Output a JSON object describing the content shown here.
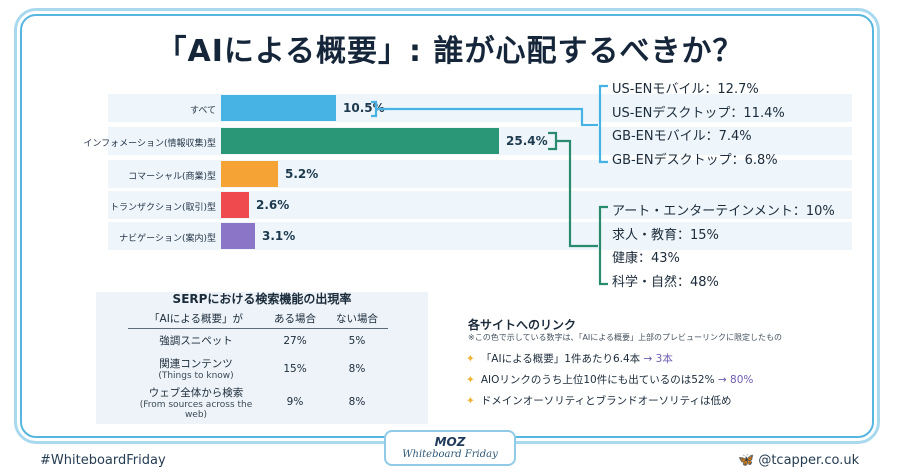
{
  "title": "「AIによる概要」: 誰が心配するべきか？",
  "colors": {
    "frame": "#57b6e0",
    "accent_blue": "#46b3e4",
    "accent_teal": "#2a9777",
    "bracket_teal": "#2a8a6e"
  },
  "chart_data": {
    "type": "bar",
    "orientation": "horizontal",
    "categories": [
      "すべて",
      "インフォメーション(情報収集)型",
      "コマーシャル(商業)型",
      "トランザクション(取引)型",
      "ナビゲーション(案内)型"
    ],
    "values": [
      10.5,
      25.4,
      5.2,
      2.6,
      3.1
    ],
    "value_labels": [
      "10.5%",
      "25.4%",
      "5.2%",
      "2.6%",
      "3.1%"
    ],
    "colors": [
      "#46b3e4",
      "#2a9777",
      "#f6a336",
      "#ef4b4f",
      "#8b75c6"
    ],
    "xlim": [
      0,
      25.4
    ]
  },
  "platform_breakdown": [
    "US-ENモバイル：12.7%",
    "US-ENデスクトップ：11.4%",
    "GB-ENモバイル：7.4%",
    "GB-ENデスクトップ：6.8%"
  ],
  "topic_breakdown": [
    "アート・エンターテインメント：10%",
    "求人・教育：15%",
    "健康：43%",
    "科学・自然：48%"
  ],
  "serp_features": {
    "title": "SERPにおける検索機能の出現率",
    "columns": [
      "「AIによる概要」が",
      "ある場合",
      "ない場合"
    ],
    "rows": [
      {
        "label": "強調スニペット",
        "sub": "",
        "with": "27%",
        "without": "5%"
      },
      {
        "label": "関連コンテンツ",
        "sub": "(Things to know)",
        "with": "15%",
        "without": "8%"
      },
      {
        "label": "ウェブ全体から検索",
        "sub": "(From sources across the web)",
        "with": "9%",
        "without": "8%"
      }
    ]
  },
  "links": {
    "title": "各サイトへのリンク",
    "note": "※この色で示している数字は、「AIによる概要」上部のプレビューリンクに限定したもの",
    "items": [
      {
        "text": "「AIによる概要」1件あたり6.4本",
        "highlight": "→ 3本"
      },
      {
        "text": "AIOリンクのうち上位10件にも出ているのは52%",
        "highlight": "→ 80%"
      },
      {
        "text": "ドメインオーソリティとブランドオーソリティは低め",
        "highlight": ""
      }
    ]
  },
  "footer": {
    "hashtag": "#WhiteboardFriday",
    "handle": "@tcapper.co.uk",
    "logo_top": "MOZ",
    "logo_bottom": "Whiteboard Friday"
  }
}
